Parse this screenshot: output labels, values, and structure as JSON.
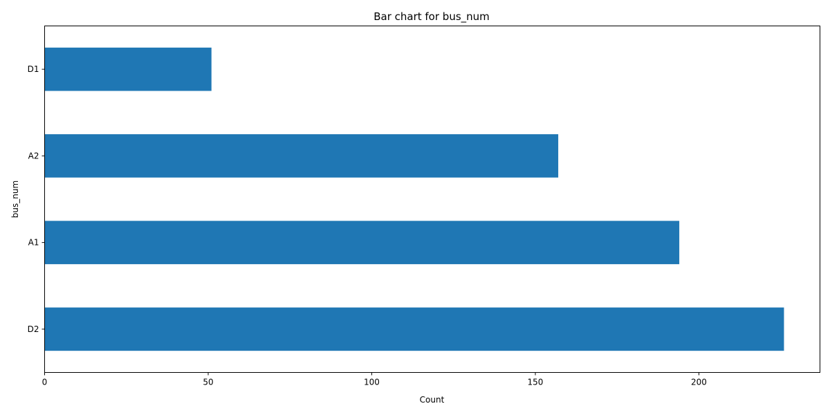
{
  "chart_data": {
    "type": "bar",
    "orientation": "horizontal",
    "title": "Bar chart for bus_num",
    "xlabel": "Count",
    "ylabel": "bus_num",
    "categories": [
      "D2",
      "A1",
      "A2",
      "D1"
    ],
    "values": [
      226,
      194,
      157,
      51
    ],
    "xlim": [
      0,
      237
    ],
    "xticks": [
      0,
      50,
      100,
      150,
      200
    ],
    "grid": false,
    "legend": "none",
    "bar_color": "#1f77b4"
  }
}
